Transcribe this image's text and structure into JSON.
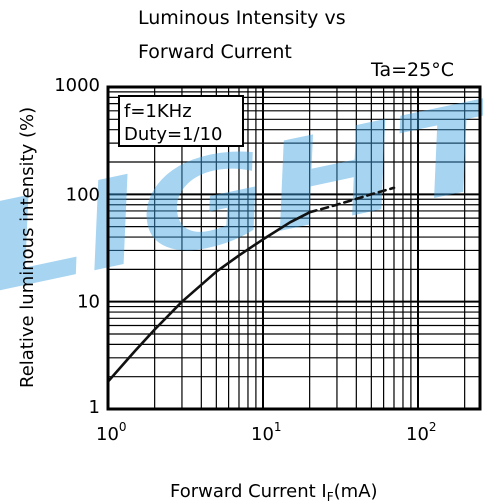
{
  "chart_data": {
    "type": "line",
    "title_lines": [
      "Luminous Intensity vs",
      "Forward Current"
    ],
    "condition_label": "Ta=25°C",
    "annotation_lines": [
      "f=1KHz",
      "Duty=1/10"
    ],
    "xlabel": "Forward Current  I",
    "xlabel_subscript": "F",
    "xlabel_unit": "(mA)",
    "ylabel": "Relative luminous intensity  (%)",
    "x_scale": "log",
    "y_scale": "log",
    "xlim": [
      1,
      300
    ],
    "ylim": [
      1,
      1000
    ],
    "x_ticks": [
      {
        "value": 1,
        "base": "10",
        "exp": "0"
      },
      {
        "value": 10,
        "base": "10",
        "exp": "1"
      },
      {
        "value": 100,
        "base": "10",
        "exp": "2"
      }
    ],
    "y_ticks": [
      {
        "value": 1,
        "label": "1"
      },
      {
        "value": 10,
        "label": "10"
      },
      {
        "value": 100,
        "label": "100"
      },
      {
        "value": 1000,
        "label": "1000"
      }
    ],
    "grid": true,
    "series": [
      {
        "style": "solid",
        "x": [
          1,
          1.5,
          2,
          3,
          5,
          7,
          10,
          15,
          20
        ],
        "y": [
          1.8,
          3.5,
          5.5,
          10,
          19,
          27,
          38,
          55,
          68
        ]
      },
      {
        "style": "dashed",
        "x": [
          20,
          30,
          50,
          70
        ],
        "y": [
          68,
          80,
          100,
          115
        ]
      }
    ]
  },
  "watermark": {
    "text": "LIGHT",
    "color": "#3aa0e0"
  }
}
